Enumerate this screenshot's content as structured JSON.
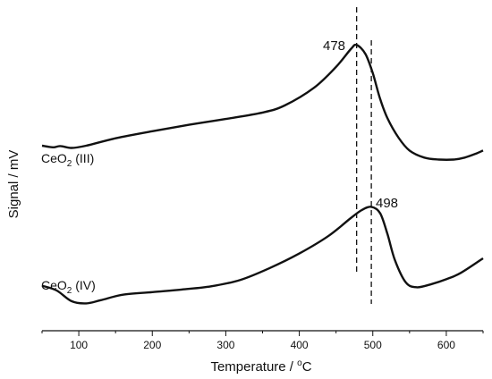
{
  "chart_data": {
    "type": "line",
    "xlabel": "Temperature / °C",
    "xlabel_parts": {
      "main": "Temperature / ",
      "sup": "o",
      "unit": "C"
    },
    "ylabel": "Signal / mV",
    "xlim": [
      50,
      650
    ],
    "ylim": [
      0,
      1
    ],
    "xticks": [
      100,
      200,
      300,
      400,
      500,
      600
    ],
    "y_tick_labels": false,
    "grid": false,
    "legend": "none",
    "line_color": "#111111",
    "series": [
      {
        "name": "CeO2 (III)",
        "label_parts": {
          "base": "CeO",
          "sub": "2",
          "rest": " (III)"
        },
        "points": [
          [
            50,
            0.575
          ],
          [
            65,
            0.57
          ],
          [
            75,
            0.574
          ],
          [
            90,
            0.568
          ],
          [
            110,
            0.575
          ],
          [
            150,
            0.598
          ],
          [
            200,
            0.62
          ],
          [
            250,
            0.64
          ],
          [
            300,
            0.658
          ],
          [
            350,
            0.678
          ],
          [
            380,
            0.7
          ],
          [
            420,
            0.755
          ],
          [
            450,
            0.82
          ],
          [
            470,
            0.875
          ],
          [
            478,
            0.888
          ],
          [
            490,
            0.86
          ],
          [
            500,
            0.8
          ],
          [
            510,
            0.72
          ],
          [
            520,
            0.66
          ],
          [
            535,
            0.6
          ],
          [
            550,
            0.56
          ],
          [
            570,
            0.538
          ],
          [
            590,
            0.532
          ],
          [
            610,
            0.532
          ],
          [
            625,
            0.538
          ],
          [
            640,
            0.55
          ],
          [
            650,
            0.56
          ]
        ]
      },
      {
        "name": "CeO2 (IV)",
        "label_parts": {
          "base": "CeO",
          "sub": "2",
          "rest": " (IV)"
        },
        "points": [
          [
            50,
            0.14
          ],
          [
            70,
            0.125
          ],
          [
            90,
            0.092
          ],
          [
            110,
            0.085
          ],
          [
            130,
            0.095
          ],
          [
            160,
            0.112
          ],
          [
            200,
            0.12
          ],
          [
            240,
            0.128
          ],
          [
            280,
            0.138
          ],
          [
            320,
            0.158
          ],
          [
            360,
            0.195
          ],
          [
            400,
            0.24
          ],
          [
            440,
            0.295
          ],
          [
            470,
            0.35
          ],
          [
            485,
            0.375
          ],
          [
            498,
            0.385
          ],
          [
            510,
            0.365
          ],
          [
            520,
            0.3
          ],
          [
            530,
            0.22
          ],
          [
            545,
            0.15
          ],
          [
            560,
            0.135
          ],
          [
            580,
            0.145
          ],
          [
            600,
            0.16
          ],
          [
            620,
            0.18
          ],
          [
            650,
            0.225
          ]
        ]
      }
    ],
    "annotations": [
      {
        "text": "478",
        "x": 478
      },
      {
        "text": "498",
        "x": 498
      }
    ],
    "reference_lines": [
      478,
      498
    ]
  }
}
